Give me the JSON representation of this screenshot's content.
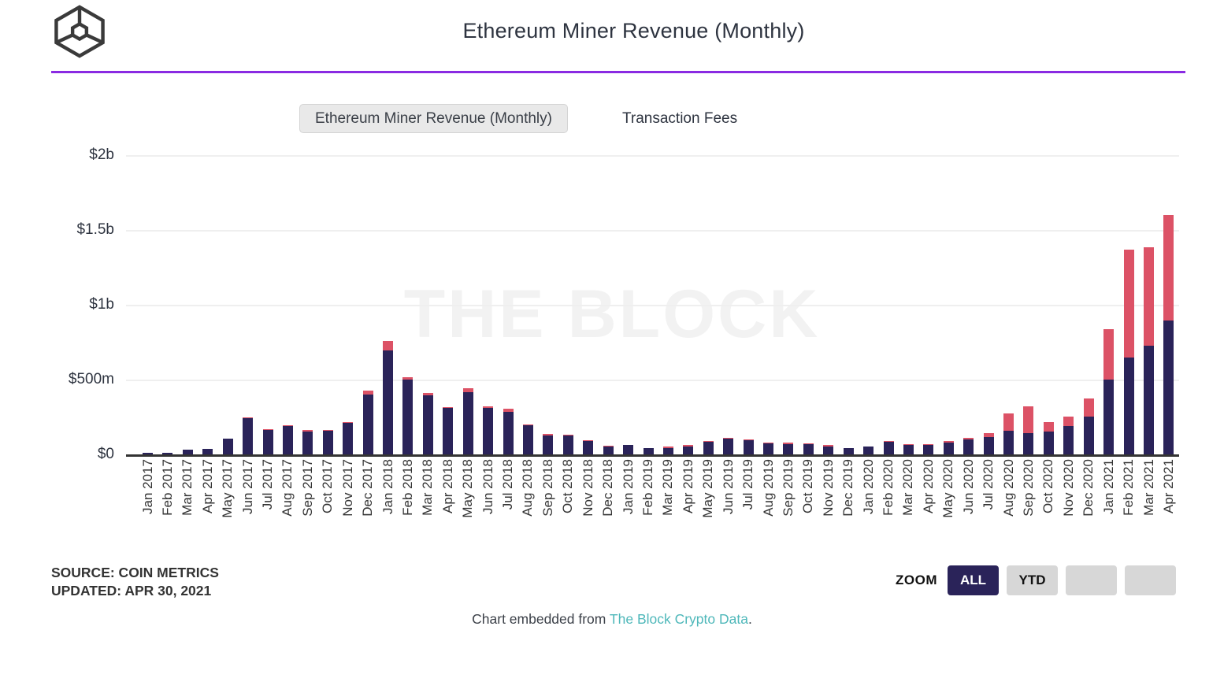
{
  "header": {
    "title": "Ethereum Miner Revenue (Monthly)"
  },
  "legend": {
    "primary": "Ethereum Miner Revenue (Monthly)",
    "secondary": "Transaction Fees"
  },
  "watermark": "THE BLOCK",
  "colors": {
    "revenue_bar": "#2a2359",
    "fees_bar": "#dc5266",
    "accent_line": "#8a2ae2",
    "link": "#4fb8ba",
    "selected_button": "#2a2359"
  },
  "y_axis": {
    "ticks": [
      {
        "label": "$2b",
        "value_m": 2000
      },
      {
        "label": "$1.5b",
        "value_m": 1500
      },
      {
        "label": "$1b",
        "value_m": 1000
      },
      {
        "label": "$500m",
        "value_m": 500
      },
      {
        "label": "$0",
        "value_m": 0
      }
    ]
  },
  "footer": {
    "source_line1": "SOURCE: COIN METRICS",
    "source_line2": "UPDATED: APR 30, 2021",
    "zoom_label": "ZOOM",
    "zoom_buttons": [
      {
        "label": "ALL",
        "selected": true
      },
      {
        "label": "YTD",
        "selected": false
      },
      {
        "label": "",
        "selected": false
      },
      {
        "label": "",
        "selected": false
      }
    ],
    "embed_prefix": "Chart embedded from ",
    "embed_link": "The Block Crypto Data",
    "embed_suffix": "."
  },
  "chart_data": {
    "type": "bar",
    "stacked": true,
    "title": "Ethereum Miner Revenue (Monthly)",
    "unit": "USD millions",
    "ylim": [
      0,
      2000
    ],
    "grid": true,
    "legend_position": "top",
    "categories": [
      "Jan 2017",
      "Feb 2017",
      "Mar 2017",
      "Apr 2017",
      "May 2017",
      "Jun 2017",
      "Jul 2017",
      "Aug 2017",
      "Sep 2017",
      "Oct 2017",
      "Nov 2017",
      "Dec 2017",
      "Jan 2018",
      "Feb 2018",
      "Mar 2018",
      "Apr 2018",
      "May 2018",
      "Jun 2018",
      "Jul 2018",
      "Aug 2018",
      "Sep 2018",
      "Oct 2018",
      "Nov 2018",
      "Dec 2018",
      "Jan 2019",
      "Feb 2019",
      "Mar 2019",
      "Apr 2019",
      "May 2019",
      "Jun 2019",
      "Jul 2019",
      "Aug 2019",
      "Sep 2019",
      "Oct 2019",
      "Nov 2019",
      "Dec 2019",
      "Jan 2020",
      "Feb 2020",
      "Mar 2020",
      "Apr 2020",
      "May 2020",
      "Jun 2020",
      "Jul 2020",
      "Aug 2020",
      "Sep 2020",
      "Oct 2020",
      "Nov 2020",
      "Dec 2020",
      "Jan 2021",
      "Feb 2021",
      "Mar 2021",
      "Apr 2021"
    ],
    "series": [
      {
        "name": "Ethereum Miner Revenue (Monthly)",
        "color": "#2a2359",
        "values": [
          10,
          11,
          30,
          38,
          107,
          242,
          165,
          188,
          150,
          158,
          211,
          398,
          697,
          498,
          393,
          312,
          417,
          311,
          284,
          197,
          126,
          124,
          89,
          51,
          64,
          44,
          44,
          55,
          86,
          106,
          94,
          76,
          69,
          67,
          55,
          42,
          53,
          85,
          63,
          64,
          78,
          101,
          117,
          159,
          140,
          150,
          192,
          253,
          498,
          645,
          726,
          896
        ]
      },
      {
        "name": "Transaction Fees",
        "color": "#dc5266",
        "values": [
          0,
          0,
          1,
          1,
          2,
          5,
          5,
          5,
          13,
          4,
          4,
          27,
          65,
          14,
          14,
          5,
          27,
          13,
          23,
          5,
          9,
          3,
          3,
          3,
          2,
          2,
          10,
          9,
          3,
          4,
          4,
          3,
          9,
          3,
          9,
          2,
          2,
          3,
          3,
          3,
          12,
          12,
          25,
          117,
          180,
          65,
          62,
          119,
          336,
          721,
          656,
          705
        ]
      }
    ]
  }
}
